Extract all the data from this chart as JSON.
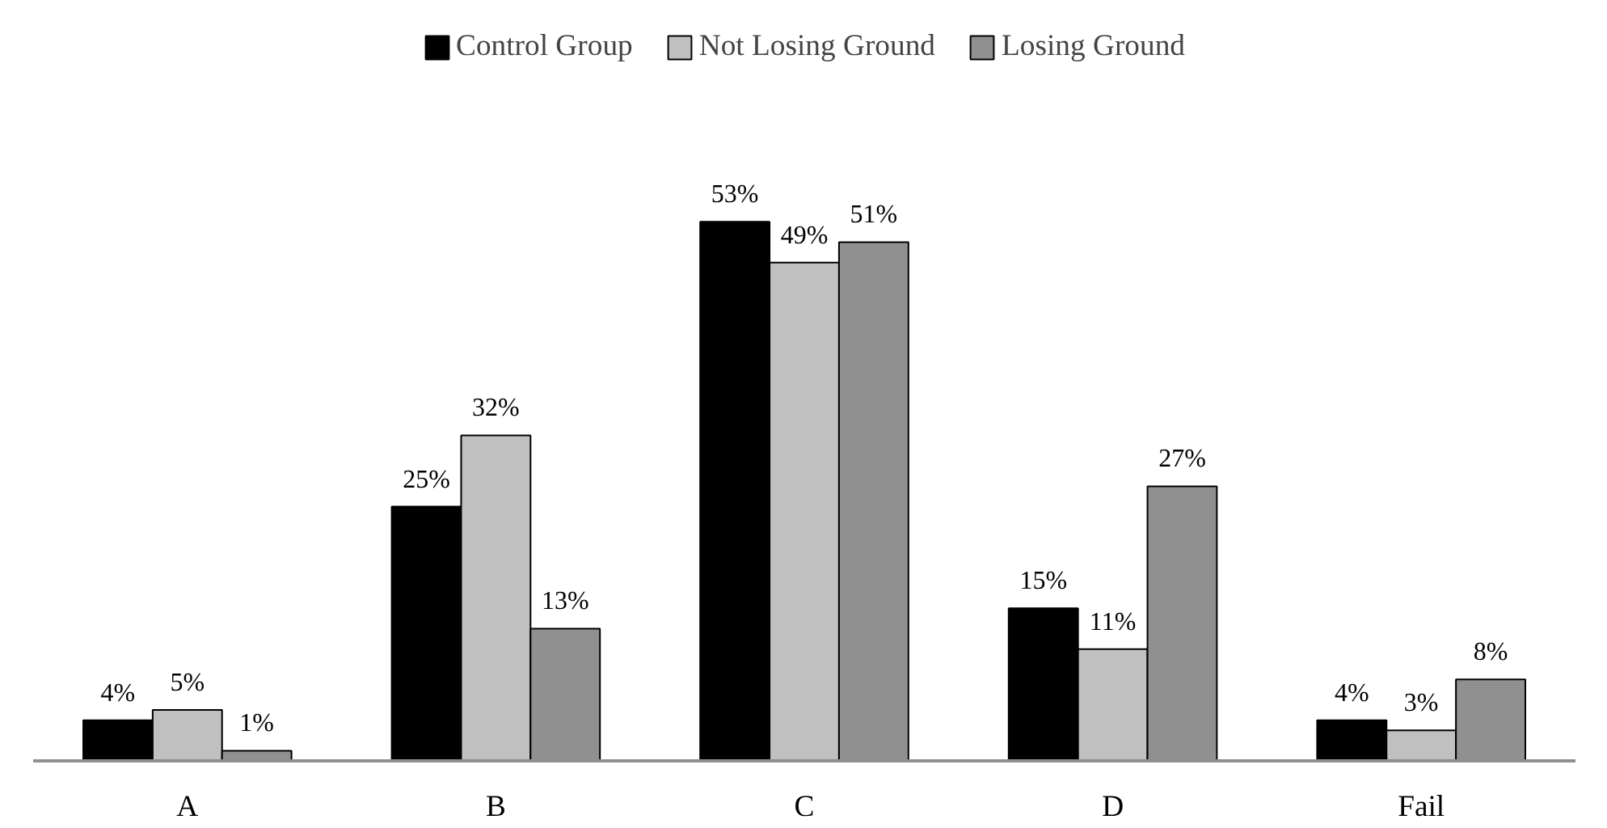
{
  "chart_data": {
    "type": "bar",
    "categories": [
      "A",
      "B",
      "C",
      "D",
      "Fail"
    ],
    "series": [
      {
        "name": "Control Group",
        "color": "#000000",
        "values": [
          4,
          25,
          53,
          15,
          4
        ],
        "value_labels": [
          "4%",
          "25%",
          "53%",
          "15%",
          "4%"
        ]
      },
      {
        "name": "Not Losing Ground",
        "color": "#c0c0c0",
        "values": [
          5,
          32,
          49,
          11,
          3
        ],
        "value_labels": [
          "5%",
          "32%",
          "49%",
          "11%",
          "3%"
        ]
      },
      {
        "name": "Losing Ground",
        "color": "#909090",
        "values": [
          1,
          13,
          51,
          27,
          8
        ],
        "value_labels": [
          "1%",
          "13%",
          "51%",
          "27%",
          "8%"
        ]
      }
    ],
    "legend": "top",
    "grid": false
  }
}
